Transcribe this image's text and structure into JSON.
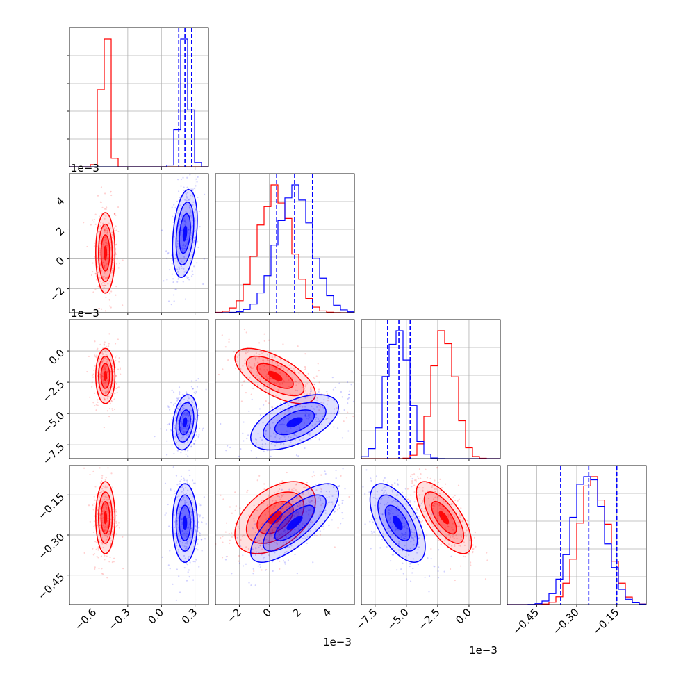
{
  "chart_data": {
    "type": "corner",
    "grid": true,
    "series": [
      {
        "name": "",
        "color": "#ff0000",
        "mean": [
          -0.5,
          0.0004,
          -0.002,
          -0.235
        ],
        "sd": [
          0.035,
          0.0011,
          0.0009,
          0.055
        ]
      },
      {
        "name": "",
        "color": "#0000ff",
        "mean": [
          0.21,
          0.0017,
          -0.0057,
          -0.255
        ],
        "sd": [
          0.045,
          0.0012,
          0.0009,
          0.06
        ]
      }
    ],
    "correlations": [
      {
        "pair": [
          0,
          1
        ],
        "red": 0.0,
        "blue": 0.3
      },
      {
        "pair": [
          0,
          2
        ],
        "red": 0.0,
        "blue": 0.25
      },
      {
        "pair": [
          0,
          3
        ],
        "red": 0.0,
        "blue": 0.0
      },
      {
        "pair": [
          1,
          2
        ],
        "red": -0.65,
        "blue": 0.55
      },
      {
        "pair": [
          1,
          3
        ],
        "red": 0.45,
        "blue": 0.75
      },
      {
        "pair": [
          2,
          3
        ],
        "red": -0.7,
        "blue": -0.6
      }
    ],
    "quantile_lines": [
      {
        "param": 0,
        "values": [
          0.155,
          0.21,
          0.27
        ]
      },
      {
        "param": 1,
        "values": [
          0.0005,
          0.0017,
          0.0029
        ]
      },
      {
        "param": 2,
        "values": [
          -0.0065,
          -0.0056,
          -0.0047
        ]
      },
      {
        "param": 3,
        "values": [
          -0.36,
          -0.255,
          -0.15
        ]
      }
    ],
    "ranges": [
      [
        -0.82,
        0.42
      ],
      [
        -0.0036,
        0.0057
      ],
      [
        -0.0086,
        0.0025
      ],
      [
        -0.56,
        -0.04
      ]
    ],
    "ticks": [
      [
        {
          "v": -0.6,
          "label": "−0.6"
        },
        {
          "v": -0.3,
          "label": "−0.3"
        },
        {
          "v": 0.0,
          "label": "0.0"
        },
        {
          "v": 0.3,
          "label": "0.3"
        }
      ],
      [
        {
          "v": -0.002,
          "label": "−2"
        },
        {
          "v": 0.0,
          "label": "0"
        },
        {
          "v": 0.002,
          "label": "2"
        },
        {
          "v": 0.004,
          "label": "4"
        }
      ],
      [
        {
          "v": 0.0,
          "label": "0.0"
        },
        {
          "v": -0.0025,
          "label": "−2.5"
        },
        {
          "v": -0.005,
          "label": "−5.0"
        },
        {
          "v": -0.0075,
          "label": "−7.5"
        }
      ],
      [
        {
          "v": -0.45,
          "label": "−0.45"
        },
        {
          "v": -0.3,
          "label": "−0.30"
        },
        {
          "v": -0.15,
          "label": "−0.15"
        }
      ]
    ],
    "offset_labels": {
      "x1": "1e−3",
      "x2": "1e−3",
      "y1": "1e−3",
      "y2": "1e−3"
    }
  }
}
